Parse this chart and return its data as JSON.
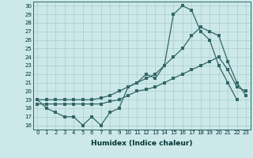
{
  "xlabel": "Humidex (Indice chaleur)",
  "bg_color": "#cce8e8",
  "line_color": "#336666",
  "grid_color": "#aacccc",
  "xticks": [
    0,
    1,
    2,
    3,
    4,
    5,
    6,
    7,
    8,
    9,
    10,
    11,
    12,
    13,
    14,
    15,
    16,
    17,
    18,
    19,
    20,
    21,
    22,
    23
  ],
  "yticks": [
    16,
    17,
    18,
    19,
    20,
    21,
    22,
    23,
    24,
    25,
    26,
    27,
    28,
    29,
    30
  ],
  "line1_x": [
    0,
    1,
    2,
    3,
    4,
    5,
    6,
    7,
    8,
    9,
    10,
    11,
    12,
    13,
    14,
    15,
    16,
    17,
    18,
    19,
    20,
    21,
    22
  ],
  "line1_y": [
    19,
    18,
    17.5,
    17,
    17,
    16,
    17,
    16,
    17.5,
    18,
    20.5,
    21,
    22,
    21.5,
    23,
    29,
    30,
    29.5,
    27,
    26,
    23,
    21,
    19
  ],
  "line2_x": [
    0,
    1,
    2,
    3,
    4,
    5,
    6,
    7,
    8,
    9,
    10,
    11,
    12,
    13,
    14,
    15,
    16,
    17,
    18,
    19,
    20,
    21,
    22,
    23
  ],
  "line2_y": [
    19,
    19,
    19,
    19,
    19,
    19,
    19,
    19.2,
    19.5,
    20,
    20.5,
    21,
    21.5,
    22,
    23,
    24,
    25,
    26.5,
    27.5,
    27,
    26.5,
    23.5,
    21,
    19.5
  ],
  "line3_x": [
    0,
    1,
    2,
    3,
    4,
    5,
    6,
    7,
    8,
    9,
    10,
    11,
    12,
    13,
    14,
    15,
    16,
    17,
    18,
    19,
    20,
    21,
    22,
    23
  ],
  "line3_y": [
    18.5,
    18.5,
    18.5,
    18.5,
    18.5,
    18.5,
    18.5,
    18.5,
    18.8,
    19,
    19.5,
    20,
    20.2,
    20.5,
    21,
    21.5,
    22,
    22.5,
    23,
    23.5,
    24,
    22.5,
    20.5,
    20
  ]
}
